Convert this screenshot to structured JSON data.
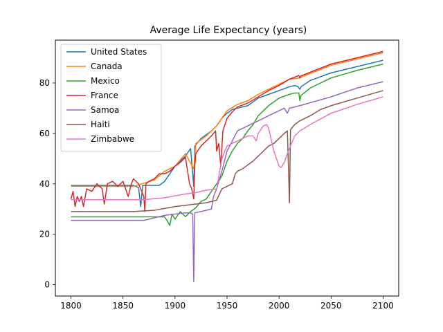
{
  "chart_data": {
    "type": "line",
    "title": "Average Life Expectancy (years)",
    "xlabel": "",
    "ylabel": "",
    "xlim": [
      1785,
      2115
    ],
    "ylim": [
      -4.5,
      97
    ],
    "xticks": [
      1800,
      1850,
      1900,
      1950,
      2000,
      2050,
      2100
    ],
    "yticks": [
      0,
      20,
      40,
      60,
      80
    ],
    "grid": false,
    "legend_position": "top-left",
    "series": [
      {
        "name": "United States",
        "color": "#1f77b4",
        "points": [
          [
            1800,
            39.4
          ],
          [
            1860,
            39.4
          ],
          [
            1865,
            38.5
          ],
          [
            1867,
            31
          ],
          [
            1869,
            39.4
          ],
          [
            1885,
            39.4
          ],
          [
            1890,
            41
          ],
          [
            1900,
            47
          ],
          [
            1910,
            51
          ],
          [
            1915,
            54
          ],
          [
            1918,
            39
          ],
          [
            1919,
            55
          ],
          [
            1925,
            58
          ],
          [
            1930,
            59.5
          ],
          [
            1935,
            61
          ],
          [
            1940,
            63
          ],
          [
            1945,
            66
          ],
          [
            1950,
            68
          ],
          [
            1955,
            69.5
          ],
          [
            1960,
            70
          ],
          [
            1965,
            70.5
          ],
          [
            1970,
            71
          ],
          [
            1975,
            72.5
          ],
          [
            1980,
            74
          ],
          [
            1990,
            75.5
          ],
          [
            2000,
            77
          ],
          [
            2010,
            78.5
          ],
          [
            2015,
            79
          ],
          [
            2018,
            78.6
          ],
          [
            2020,
            77.5
          ],
          [
            2021,
            78.5
          ],
          [
            2030,
            81
          ],
          [
            2050,
            84
          ],
          [
            2075,
            86.5
          ],
          [
            2100,
            89
          ]
        ]
      },
      {
        "name": "Canada",
        "color": "#ff7f0e",
        "points": [
          [
            1800,
            39
          ],
          [
            1860,
            39
          ],
          [
            1880,
            41.5
          ],
          [
            1890,
            45
          ],
          [
            1900,
            47
          ],
          [
            1910,
            52
          ],
          [
            1918,
            46
          ],
          [
            1920,
            56
          ],
          [
            1930,
            59
          ],
          [
            1940,
            63
          ],
          [
            1950,
            69
          ],
          [
            1960,
            71.5
          ],
          [
            1970,
            73
          ],
          [
            1980,
            75.5
          ],
          [
            1990,
            77.5
          ],
          [
            2000,
            79.5
          ],
          [
            2010,
            81.5
          ],
          [
            2020,
            82
          ],
          [
            2021,
            82.3
          ],
          [
            2050,
            87
          ],
          [
            2075,
            89.5
          ],
          [
            2100,
            92
          ]
        ]
      },
      {
        "name": "Mexico",
        "color": "#2ca02c",
        "points": [
          [
            1800,
            26.9
          ],
          [
            1890,
            26.9
          ],
          [
            1893,
            25
          ],
          [
            1895,
            23.5
          ],
          [
            1897,
            28
          ],
          [
            1900,
            26
          ],
          [
            1905,
            29
          ],
          [
            1910,
            27
          ],
          [
            1915,
            29
          ],
          [
            1920,
            30.5
          ],
          [
            1925,
            33
          ],
          [
            1930,
            34
          ],
          [
            1935,
            37
          ],
          [
            1940,
            40
          ],
          [
            1945,
            43
          ],
          [
            1950,
            49
          ],
          [
            1955,
            53
          ],
          [
            1960,
            56
          ],
          [
            1965,
            58
          ],
          [
            1970,
            61
          ],
          [
            1975,
            63.5
          ],
          [
            1980,
            67
          ],
          [
            1990,
            71
          ],
          [
            2000,
            74
          ],
          [
            2010,
            75.5
          ],
          [
            2015,
            76
          ],
          [
            2019,
            76
          ],
          [
            2020,
            73
          ],
          [
            2021,
            75
          ],
          [
            2030,
            78
          ],
          [
            2050,
            82
          ],
          [
            2075,
            85
          ],
          [
            2100,
            87.5
          ]
        ]
      },
      {
        "name": "France",
        "color": "#d62728",
        "points": [
          [
            1800,
            34
          ],
          [
            1802,
            37
          ],
          [
            1804,
            31
          ],
          [
            1806,
            35
          ],
          [
            1808,
            33
          ],
          [
            1810,
            35
          ],
          [
            1812,
            31
          ],
          [
            1815,
            38
          ],
          [
            1820,
            37
          ],
          [
            1825,
            40
          ],
          [
            1830,
            38
          ],
          [
            1832,
            32
          ],
          [
            1835,
            40
          ],
          [
            1840,
            41
          ],
          [
            1845,
            39
          ],
          [
            1850,
            41
          ],
          [
            1855,
            35
          ],
          [
            1858,
            40
          ],
          [
            1860,
            42
          ],
          [
            1865,
            40
          ],
          [
            1870,
            35
          ],
          [
            1871,
            29
          ],
          [
            1872,
            40
          ],
          [
            1875,
            41
          ],
          [
            1880,
            42
          ],
          [
            1885,
            44
          ],
          [
            1890,
            44
          ],
          [
            1895,
            45
          ],
          [
            1900,
            47
          ],
          [
            1905,
            48.5
          ],
          [
            1910,
            50.5
          ],
          [
            1914,
            40
          ],
          [
            1916,
            38
          ],
          [
            1918,
            34
          ],
          [
            1919,
            47
          ],
          [
            1920,
            52
          ],
          [
            1925,
            55
          ],
          [
            1930,
            57
          ],
          [
            1935,
            59
          ],
          [
            1939,
            61
          ],
          [
            1940,
            53
          ],
          [
            1942,
            56
          ],
          [
            1944,
            47
          ],
          [
            1946,
            61
          ],
          [
            1950,
            66
          ],
          [
            1955,
            68.5
          ],
          [
            1960,
            70.5
          ],
          [
            1970,
            72
          ],
          [
            1980,
            74.5
          ],
          [
            1990,
            77
          ],
          [
            2000,
            79
          ],
          [
            2010,
            81.5
          ],
          [
            2019,
            83
          ],
          [
            2020,
            82
          ],
          [
            2021,
            82.8
          ],
          [
            2050,
            87.5
          ],
          [
            2075,
            90
          ],
          [
            2100,
            92.5
          ]
        ]
      },
      {
        "name": "Samoa",
        "color": "#9467bd",
        "points": [
          [
            1800,
            25.5
          ],
          [
            1870,
            25.5
          ],
          [
            1880,
            26.5
          ],
          [
            1890,
            27.5
          ],
          [
            1900,
            28
          ],
          [
            1910,
            28.5
          ],
          [
            1915,
            28.5
          ],
          [
            1917,
            28
          ],
          [
            1918,
            1.2
          ],
          [
            1919,
            28.5
          ],
          [
            1925,
            29
          ],
          [
            1935,
            30
          ],
          [
            1937,
            35
          ],
          [
            1940,
            38
          ],
          [
            1945,
            45
          ],
          [
            1950,
            53
          ],
          [
            1955,
            57
          ],
          [
            1960,
            61
          ],
          [
            1965,
            62
          ],
          [
            1970,
            63
          ],
          [
            1980,
            65
          ],
          [
            1990,
            67
          ],
          [
            2000,
            69
          ],
          [
            2005,
            70
          ],
          [
            2008,
            68
          ],
          [
            2010,
            70
          ],
          [
            2020,
            71
          ],
          [
            2050,
            74.5
          ],
          [
            2075,
            78
          ],
          [
            2100,
            80.5
          ]
        ]
      },
      {
        "name": "Haiti",
        "color": "#8c564b",
        "points": [
          [
            1800,
            29
          ],
          [
            1860,
            29
          ],
          [
            1880,
            29.5
          ],
          [
            1900,
            31
          ],
          [
            1920,
            32
          ],
          [
            1930,
            32.5
          ],
          [
            1940,
            33.5
          ],
          [
            1945,
            38
          ],
          [
            1950,
            39
          ],
          [
            1955,
            40
          ],
          [
            1958,
            44
          ],
          [
            1960,
            45
          ],
          [
            1965,
            46
          ],
          [
            1970,
            47.5
          ],
          [
            1975,
            49
          ],
          [
            1980,
            51
          ],
          [
            1985,
            53
          ],
          [
            1990,
            55
          ],
          [
            1995,
            56
          ],
          [
            2000,
            58
          ],
          [
            2005,
            60
          ],
          [
            2008,
            61
          ],
          [
            2010,
            32.5
          ],
          [
            2011,
            61.5
          ],
          [
            2015,
            63.5
          ],
          [
            2020,
            65
          ],
          [
            2030,
            67
          ],
          [
            2040,
            69.5
          ],
          [
            2050,
            71
          ],
          [
            2075,
            74
          ],
          [
            2100,
            77
          ]
        ]
      },
      {
        "name": "Zimbabwe",
        "color": "#e377c2",
        "points": [
          [
            1800,
            33.7
          ],
          [
            1870,
            33.7
          ],
          [
            1890,
            34.5
          ],
          [
            1910,
            36
          ],
          [
            1920,
            36.5
          ],
          [
            1930,
            37.5
          ],
          [
            1940,
            38
          ],
          [
            1945,
            50
          ],
          [
            1950,
            55
          ],
          [
            1955,
            56
          ],
          [
            1960,
            57
          ],
          [
            1965,
            58
          ],
          [
            1970,
            59
          ],
          [
            1975,
            59
          ],
          [
            1978,
            57
          ],
          [
            1980,
            60
          ],
          [
            1985,
            63
          ],
          [
            1988,
            63.5
          ],
          [
            1990,
            62
          ],
          [
            1995,
            53
          ],
          [
            2000,
            47
          ],
          [
            2002,
            46.5
          ],
          [
            2005,
            48.5
          ],
          [
            2008,
            52
          ],
          [
            2010,
            54
          ],
          [
            2015,
            59
          ],
          [
            2020,
            61
          ],
          [
            2030,
            63.5
          ],
          [
            2050,
            68
          ],
          [
            2075,
            71.5
          ],
          [
            2100,
            74.5
          ]
        ]
      }
    ]
  }
}
